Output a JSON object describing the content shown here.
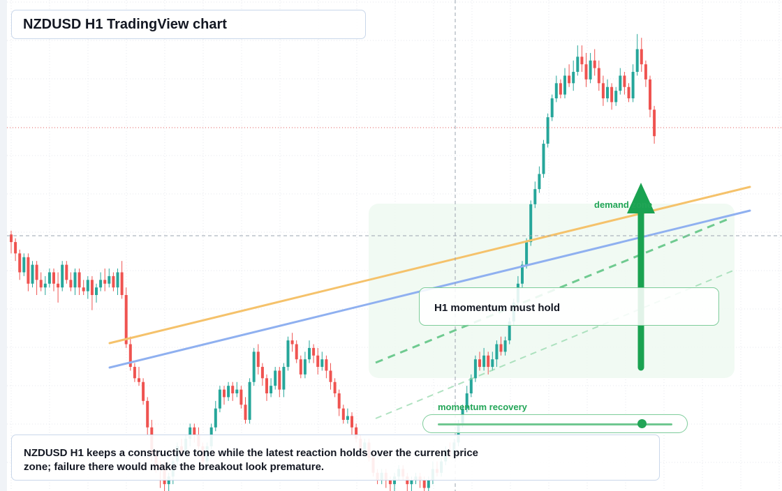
{
  "header": {
    "title": "NZDUSD H1 TradingView chart"
  },
  "annotations": {
    "demand_label": "demand zone",
    "momentum_label": "momentum recovery",
    "callout_text": "H1 momentum must hold",
    "note_text": "NZDUSD H1 keeps a constructive tone while the latest reaction holds over the current price zone; failure there would make the breakout look premature."
  },
  "slider": {
    "value": 0.87
  },
  "colors": {
    "up": "#26a69a",
    "down": "#ef5350",
    "orange_line": "#f5c26b",
    "blue_line": "#8fb0f0",
    "green_accent": "#22a557",
    "zone_fill": "#eef9f1",
    "grid": "#e4e7ec"
  },
  "chart_data": {
    "type": "candlestick",
    "timeframe": "H1",
    "symbol": "NZDUSD",
    "y_scale": "relative units (no price axis printed)",
    "ylim": [
      0,
      130
    ],
    "reference_levels": {
      "dashed_horizontal": 65.0,
      "dotted_red_horizontal": 94.0
    },
    "candles": [
      [
        68,
        66,
        69,
        63
      ],
      [
        66,
        63,
        67,
        61
      ],
      [
        63,
        58,
        64,
        56
      ],
      [
        58,
        62,
        63,
        57
      ],
      [
        62,
        55,
        63,
        53
      ],
      [
        55,
        60,
        61,
        54
      ],
      [
        60,
        56,
        61,
        52
      ],
      [
        56,
        54,
        58,
        53
      ],
      [
        54,
        55,
        57,
        52
      ],
      [
        55,
        58,
        59,
        54
      ],
      [
        58,
        55,
        59,
        53
      ],
      [
        55,
        54,
        58,
        50
      ],
      [
        54,
        60,
        61,
        53
      ],
      [
        60,
        56,
        61,
        55
      ],
      [
        56,
        54,
        58,
        53
      ],
      [
        54,
        58,
        59,
        52
      ],
      [
        58,
        54,
        59,
        52
      ],
      [
        54,
        53,
        56,
        52
      ],
      [
        53,
        56,
        57,
        51
      ],
      [
        56,
        52,
        57,
        48
      ],
      [
        52,
        54,
        55,
        50
      ],
      [
        54,
        56,
        58,
        53
      ],
      [
        56,
        55,
        59,
        53
      ],
      [
        55,
        57,
        59,
        54
      ],
      [
        57,
        54,
        58,
        53
      ],
      [
        54,
        58,
        59,
        52
      ],
      [
        58,
        52,
        61,
        51
      ],
      [
        52,
        39,
        54,
        38
      ],
      [
        39,
        33,
        41,
        32
      ],
      [
        33,
        30,
        34,
        29
      ],
      [
        30,
        29,
        33,
        28
      ],
      [
        29,
        24,
        30,
        23
      ],
      [
        24,
        17,
        25,
        15
      ],
      [
        17,
        10,
        19,
        8
      ],
      [
        10,
        7,
        11,
        5
      ],
      [
        7,
        6,
        8,
        1
      ],
      [
        6,
        2,
        8,
        0
      ],
      [
        2,
        4,
        5,
        0
      ],
      [
        4,
        8,
        9,
        2
      ],
      [
        8,
        12,
        13,
        7
      ],
      [
        12,
        10,
        14,
        9
      ],
      [
        10,
        14,
        15,
        9
      ],
      [
        14,
        17,
        18,
        12
      ],
      [
        17,
        15,
        18,
        13
      ],
      [
        15,
        12,
        17,
        11
      ],
      [
        12,
        8,
        13,
        7
      ],
      [
        8,
        12,
        13,
        6
      ],
      [
        12,
        17,
        18,
        11
      ],
      [
        17,
        22,
        24,
        16
      ],
      [
        22,
        27,
        28,
        21
      ],
      [
        27,
        25,
        28,
        23
      ],
      [
        25,
        28,
        29,
        24
      ],
      [
        28,
        26,
        29,
        24
      ],
      [
        26,
        27,
        29,
        25
      ],
      [
        27,
        23,
        28,
        22
      ],
      [
        23,
        19,
        25,
        18
      ],
      [
        19,
        29,
        30,
        18
      ],
      [
        29,
        37,
        38,
        28
      ],
      [
        37,
        33,
        39,
        31
      ],
      [
        33,
        30,
        34,
        28
      ],
      [
        30,
        26,
        31,
        24
      ],
      [
        26,
        28,
        30,
        25
      ],
      [
        28,
        32,
        33,
        27
      ],
      [
        32,
        27,
        33,
        25
      ],
      [
        27,
        33,
        34,
        25
      ],
      [
        33,
        40,
        41,
        32
      ],
      [
        40,
        39,
        42,
        37
      ],
      [
        39,
        35,
        40,
        34
      ],
      [
        35,
        31,
        36,
        30
      ],
      [
        31,
        35,
        37,
        30
      ],
      [
        35,
        38,
        40,
        34
      ],
      [
        38,
        36,
        39,
        34
      ],
      [
        36,
        33,
        38,
        31
      ],
      [
        33,
        35,
        37,
        32
      ],
      [
        35,
        32,
        36,
        30
      ],
      [
        32,
        29,
        34,
        27
      ],
      [
        29,
        26,
        30,
        25
      ],
      [
        26,
        22,
        27,
        20
      ],
      [
        22,
        19,
        23,
        18
      ],
      [
        19,
        20,
        22,
        18
      ],
      [
        20,
        17,
        21,
        15
      ],
      [
        17,
        14,
        18,
        13
      ],
      [
        14,
        11,
        15,
        10
      ],
      [
        11,
        13,
        14,
        10
      ],
      [
        13,
        9,
        14,
        8
      ],
      [
        9,
        5,
        10,
        4
      ],
      [
        5,
        3,
        6,
        2
      ],
      [
        3,
        5,
        6,
        2
      ],
      [
        5,
        3,
        6,
        1
      ],
      [
        3,
        2,
        4,
        0
      ],
      [
        2,
        4,
        5,
        0
      ],
      [
        4,
        6,
        7,
        3
      ],
      [
        6,
        4,
        7,
        3
      ],
      [
        4,
        2,
        5,
        0
      ],
      [
        2,
        3,
        4,
        0
      ],
      [
        3,
        4,
        5,
        2
      ],
      [
        4,
        3,
        5,
        1
      ],
      [
        3,
        1,
        4,
        0
      ],
      [
        1,
        3,
        4,
        0
      ],
      [
        3,
        6,
        8,
        2
      ],
      [
        6,
        5,
        8,
        4
      ],
      [
        5,
        8,
        9,
        4
      ],
      [
        8,
        11,
        12,
        7
      ],
      [
        11,
        10,
        13,
        9
      ],
      [
        10,
        13,
        14,
        9
      ],
      [
        13,
        18,
        19,
        12
      ],
      [
        18,
        22,
        23,
        17
      ],
      [
        22,
        26,
        28,
        21
      ],
      [
        26,
        30,
        31,
        25
      ],
      [
        30,
        35,
        36,
        29
      ],
      [
        35,
        33,
        37,
        32
      ],
      [
        33,
        36,
        38,
        32
      ],
      [
        36,
        33,
        37,
        31
      ],
      [
        33,
        35,
        37,
        32
      ],
      [
        35,
        39,
        40,
        33
      ],
      [
        39,
        37,
        41,
        36
      ],
      [
        37,
        40,
        41,
        36
      ],
      [
        40,
        45,
        46,
        39
      ],
      [
        45,
        50,
        51,
        44
      ],
      [
        50,
        55,
        57,
        49
      ],
      [
        55,
        60,
        61,
        54
      ],
      [
        60,
        66,
        67,
        59
      ],
      [
        66,
        76,
        77,
        65
      ],
      [
        76,
        80,
        82,
        75
      ],
      [
        80,
        84,
        86,
        79
      ],
      [
        84,
        92,
        93,
        83
      ],
      [
        92,
        99,
        100,
        91
      ],
      [
        99,
        104,
        105,
        98
      ],
      [
        104,
        108,
        110,
        103
      ],
      [
        108,
        105,
        109,
        104
      ],
      [
        105,
        110,
        112,
        104
      ],
      [
        110,
        108,
        113,
        107
      ],
      [
        108,
        111,
        114,
        106
      ],
      [
        111,
        115,
        118,
        110
      ],
      [
        115,
        113,
        118,
        111
      ],
      [
        113,
        109,
        116,
        107
      ],
      [
        109,
        114,
        116,
        108
      ],
      [
        114,
        112,
        117,
        110
      ],
      [
        112,
        108,
        114,
        106
      ],
      [
        108,
        104,
        110,
        102
      ],
      [
        104,
        107,
        109,
        103
      ],
      [
        107,
        103,
        108,
        101
      ],
      [
        103,
        106,
        107,
        102
      ],
      [
        106,
        110,
        112,
        105
      ],
      [
        110,
        107,
        111,
        105
      ],
      [
        107,
        104,
        108,
        103
      ],
      [
        104,
        111,
        113,
        103
      ],
      [
        111,
        117,
        121,
        110
      ],
      [
        117,
        113,
        120,
        111
      ],
      [
        113,
        109,
        114,
        107
      ],
      [
        109,
        101,
        110,
        99
      ],
      [
        101,
        94,
        102,
        92
      ]
    ]
  }
}
